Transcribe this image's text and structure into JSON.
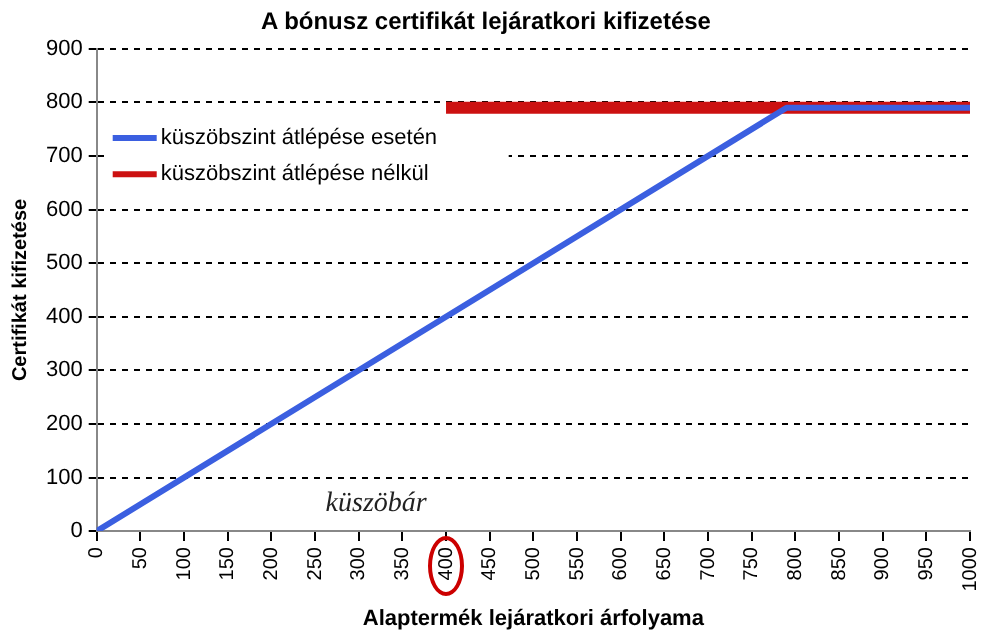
{
  "chart_data": {
    "type": "line",
    "title": "A bónusz certifikát lejáratkori kifizetése",
    "xlabel": "Alaptermék lejáratkori árfolyama",
    "ylabel": "Certifikát kifizetése",
    "series": [
      {
        "name": "küszöbszint átlépése esetén",
        "color": "#3b5fe0",
        "x": [
          0,
          790,
          1000
        ],
        "values": [
          0,
          790,
          790
        ]
      },
      {
        "name": "küszöbszint átlépése nélkül",
        "color": "#cc1111",
        "x": [
          400,
          1000
        ],
        "values": [
          790,
          790
        ]
      }
    ],
    "xlim": [
      0,
      1000
    ],
    "xticks": [
      0,
      50,
      100,
      150,
      200,
      250,
      300,
      350,
      400,
      450,
      500,
      550,
      600,
      650,
      700,
      750,
      800,
      850,
      900,
      950,
      1000
    ],
    "ylim": [
      0,
      900
    ],
    "yticks": [
      0,
      100,
      200,
      300,
      400,
      500,
      600,
      700,
      800,
      900
    ],
    "grid": "y",
    "legend": "top left",
    "marker": "none",
    "line_style": "solid",
    "annotations": [
      "küszöbár"
    ]
  }
}
